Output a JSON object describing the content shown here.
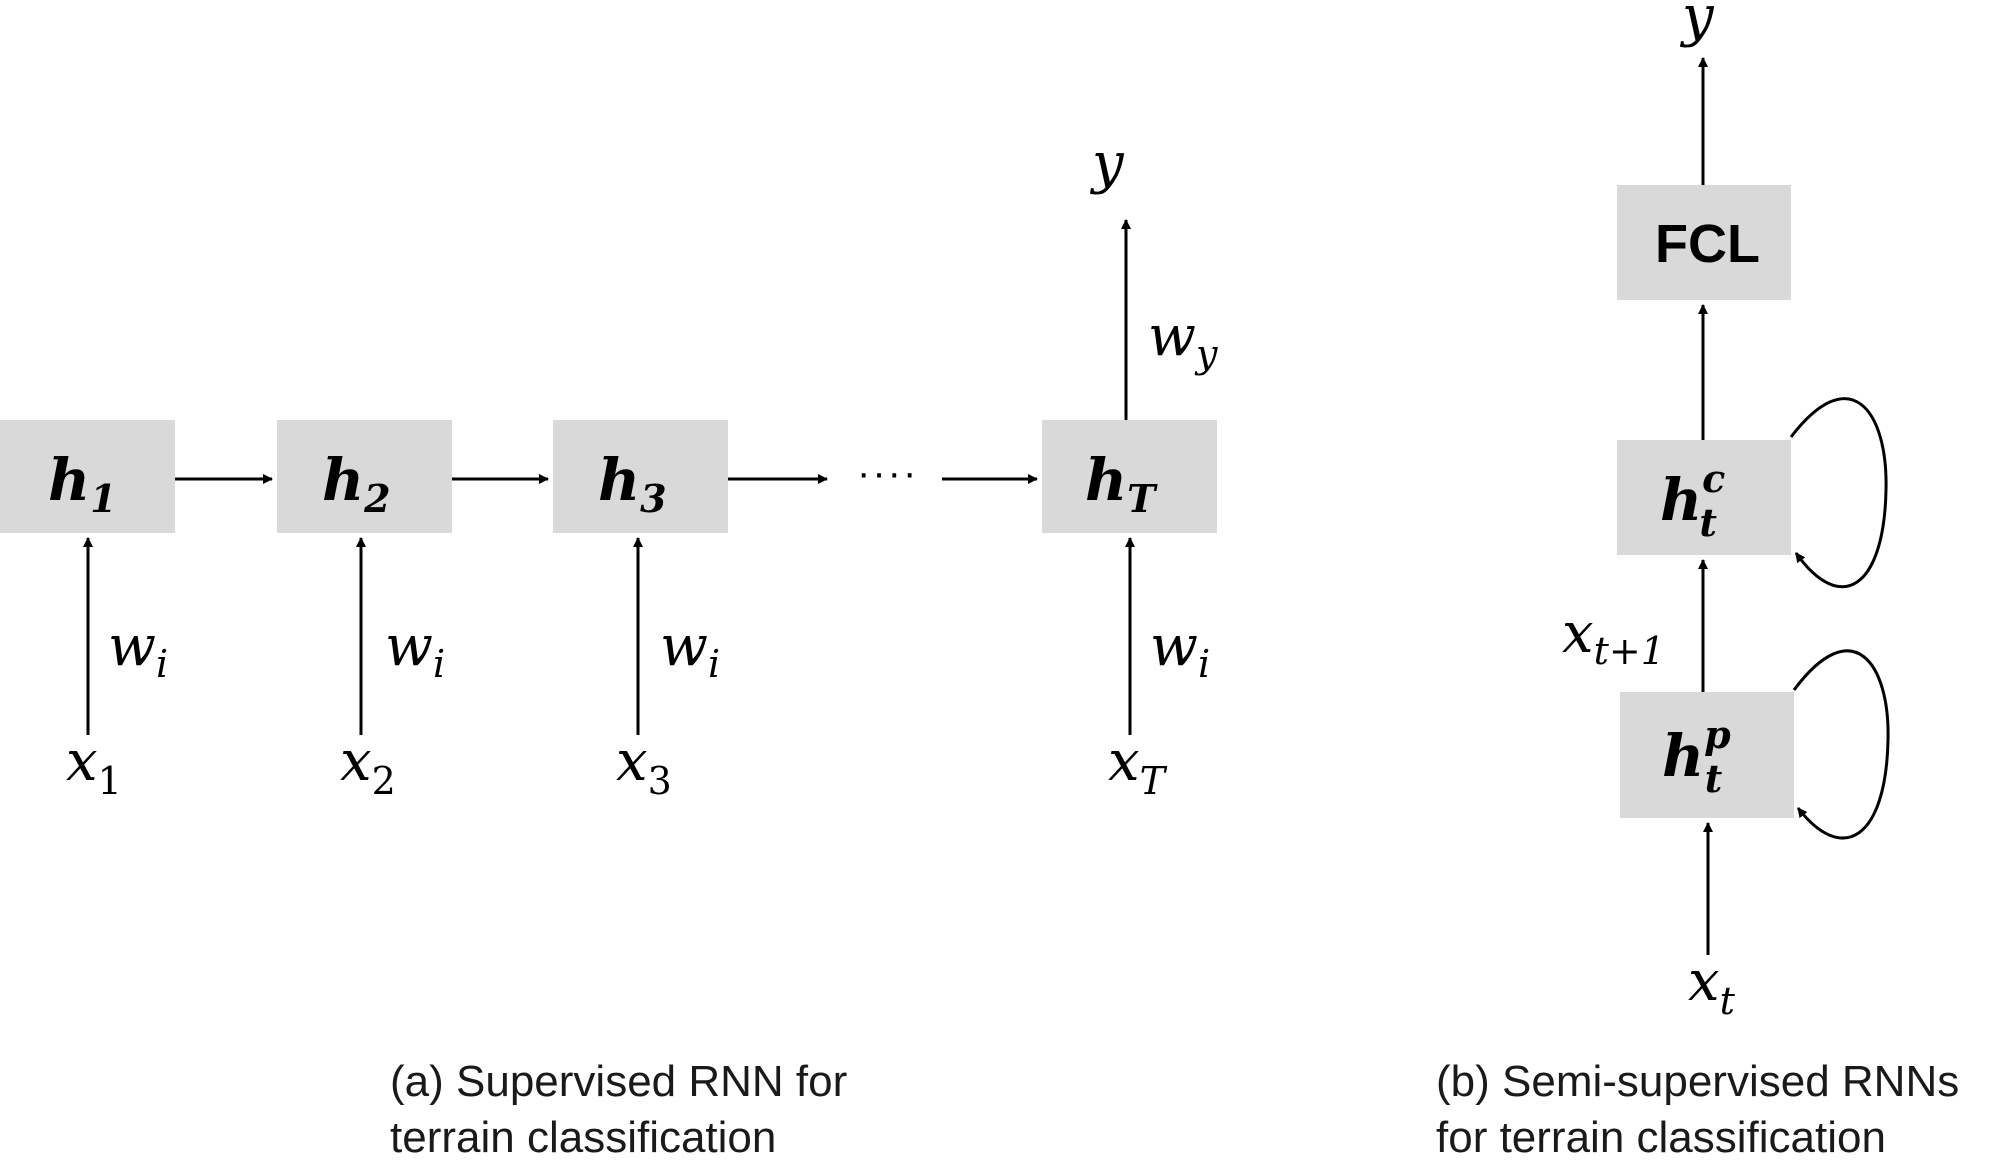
{
  "panel_a": {
    "nodes": [
      {
        "base": "h",
        "sub": "1"
      },
      {
        "base": "h",
        "sub": "2"
      },
      {
        "base": "h",
        "sub": "3"
      },
      {
        "base": "h",
        "sub": "T"
      }
    ],
    "ellipsis": "····",
    "inputs": [
      {
        "base": "x",
        "sub": "1"
      },
      {
        "base": "x",
        "sub": "2"
      },
      {
        "base": "x",
        "sub": "3"
      },
      {
        "base": "x",
        "sub": "T"
      }
    ],
    "input_weight": {
      "base": "w",
      "sub": "i"
    },
    "output_weight": {
      "base": "w",
      "sub": "y"
    },
    "output": "y",
    "caption_line1": "(a) Supervised RNN for",
    "caption_line2": "terrain classification"
  },
  "panel_b": {
    "output": "y",
    "fcl_label": "FCL",
    "node_c": {
      "base": "h",
      "sub": "t",
      "sup": "c"
    },
    "node_p": {
      "base": "h",
      "sub": "t",
      "sup": "p"
    },
    "mid_var": {
      "base": "x",
      "sub": "t+1"
    },
    "input": {
      "base": "x",
      "sub": "t"
    },
    "caption_line1": "(b) Semi-supervised RNNs",
    "caption_line2": "for terrain classification"
  }
}
